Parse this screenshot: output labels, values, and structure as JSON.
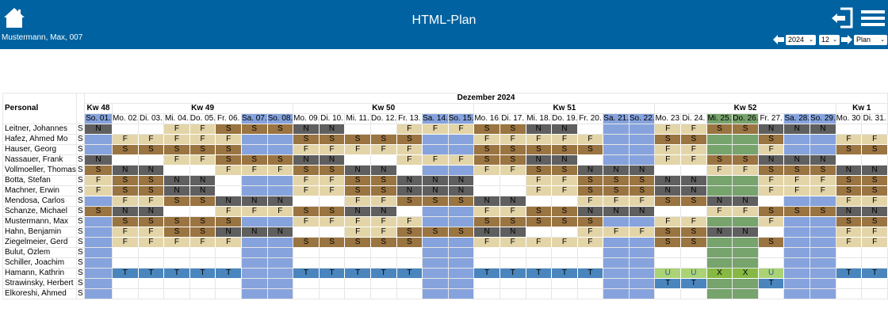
{
  "header": {
    "title": "HTML-Plan",
    "user": "Mustermann, Max, 007",
    "year": "2024",
    "month": "12",
    "view": "Plan",
    "icons": [
      "home-icon",
      "logout-icon",
      "menu-icon",
      "arrow-left-icon",
      "arrow-right-icon"
    ]
  },
  "colors": {
    "header_bg": "#0062a0",
    "weekend": "#86a3dd",
    "holiday": "#77a36c",
    "F": "#e3d5a8",
    "S": "#9a7441",
    "N": "#5f5f5f",
    "T": "#4a86bd",
    "U": "#abd274",
    "X": "#86b843"
  },
  "plan": {
    "personal_label": "Personal",
    "month_label": "Dezember 2024",
    "weeks": [
      {
        "label": "Kw 48",
        "days": 1
      },
      {
        "label": "Kw 49",
        "days": 7
      },
      {
        "label": "Kw 50",
        "days": 7
      },
      {
        "label": "Kw 51",
        "days": 7
      },
      {
        "label": "Kw 52",
        "days": 7
      },
      {
        "label": "Kw 1",
        "days": 2
      }
    ],
    "days": [
      {
        "label": "So. 01.",
        "type": "weekend"
      },
      {
        "label": "Mo. 02.",
        "type": "workday"
      },
      {
        "label": "Di. 03.",
        "type": "workday"
      },
      {
        "label": "Mi. 04.",
        "type": "workday"
      },
      {
        "label": "Do. 05.",
        "type": "workday"
      },
      {
        "label": "Fr. 06.",
        "type": "workday"
      },
      {
        "label": "Sa. 07.",
        "type": "weekend"
      },
      {
        "label": "So. 08.",
        "type": "weekend"
      },
      {
        "label": "Mo. 09.",
        "type": "workday"
      },
      {
        "label": "Di. 10.",
        "type": "workday"
      },
      {
        "label": "Mi. 11.",
        "type": "workday"
      },
      {
        "label": "Do. 12.",
        "type": "workday"
      },
      {
        "label": "Fr. 13.",
        "type": "workday"
      },
      {
        "label": "Sa. 14.",
        "type": "weekend"
      },
      {
        "label": "So. 15.",
        "type": "weekend"
      },
      {
        "label": "Mo. 16.",
        "type": "workday"
      },
      {
        "label": "Di. 17.",
        "type": "workday"
      },
      {
        "label": "Mi. 18.",
        "type": "workday"
      },
      {
        "label": "Do. 19.",
        "type": "workday"
      },
      {
        "label": "Fr. 20.",
        "type": "workday"
      },
      {
        "label": "Sa. 21.",
        "type": "weekend"
      },
      {
        "label": "So. 22.",
        "type": "weekend"
      },
      {
        "label": "Mo. 23.",
        "type": "workday"
      },
      {
        "label": "Di. 24.",
        "type": "workday"
      },
      {
        "label": "Mi. 25.",
        "type": "holiday"
      },
      {
        "label": "Do. 26.",
        "type": "holiday"
      },
      {
        "label": "Fr. 27.",
        "type": "workday"
      },
      {
        "label": "Sa. 28.",
        "type": "weekend"
      },
      {
        "label": "So. 29.",
        "type": "weekend"
      },
      {
        "label": "Mo. 30.",
        "type": "workday"
      },
      {
        "label": "Di. 31.",
        "type": "workday"
      }
    ],
    "rows": [
      {
        "name": "Leitner, Johannes",
        "code": "S",
        "cells": [
          "N",
          "",
          "",
          "F",
          "F",
          "S",
          "S",
          "S",
          "N",
          "N",
          "",
          "",
          "F",
          "F",
          "F",
          "S",
          "S",
          "N",
          "N",
          "",
          "",
          "",
          "F",
          "F",
          "S",
          "S",
          "N",
          "N",
          "N",
          "",
          ""
        ]
      },
      {
        "name": "Hafez, Ahmed Mo",
        "code": "S",
        "cells": [
          "",
          "F",
          "F",
          "F",
          "F",
          "F",
          "",
          "",
          "S",
          "S",
          "S",
          "S",
          "S",
          "",
          "",
          "F",
          "F",
          "F",
          "F",
          "F",
          "",
          "",
          "S",
          "S",
          "",
          "",
          "S",
          "",
          "",
          "F",
          "F"
        ]
      },
      {
        "name": "Hauser, Georg",
        "code": "S",
        "cells": [
          "",
          "S",
          "S",
          "S",
          "S",
          "S",
          "",
          "",
          "F",
          "F",
          "F",
          "F",
          "F",
          "",
          "",
          "S",
          "S",
          "S",
          "S",
          "S",
          "",
          "",
          "F",
          "F",
          "",
          "",
          "F",
          "",
          "",
          "S",
          "S"
        ]
      },
      {
        "name": "Nassauer, Frank",
        "code": "S",
        "cells": [
          "N",
          "",
          "",
          "F",
          "F",
          "S",
          "S",
          "S",
          "N",
          "N",
          "",
          "",
          "F",
          "F",
          "F",
          "S",
          "S",
          "N",
          "N",
          "",
          "",
          "",
          "F",
          "F",
          "S",
          "S",
          "N",
          "N",
          "N",
          "",
          ""
        ]
      },
      {
        "name": "Vollmoeller, Thomas",
        "code": "S",
        "cells": [
          "S",
          "N",
          "N",
          "",
          "",
          "F",
          "F",
          "F",
          "S",
          "S",
          "N",
          "N",
          "",
          "",
          "",
          "F",
          "F",
          "S",
          "S",
          "N",
          "N",
          "N",
          "",
          "",
          "F",
          "F",
          "S",
          "S",
          "S",
          "N",
          "N"
        ]
      },
      {
        "name": "Botta, Stefan",
        "code": "S",
        "cells": [
          "F",
          "S",
          "S",
          "N",
          "N",
          "",
          "",
          "",
          "F",
          "F",
          "S",
          "S",
          "N",
          "N",
          "N",
          "",
          "",
          "F",
          "F",
          "S",
          "S",
          "S",
          "N",
          "N",
          "",
          "",
          "F",
          "F",
          "F",
          "S",
          "S"
        ]
      },
      {
        "name": "Machner, Erwin",
        "code": "S",
        "cells": [
          "F",
          "S",
          "S",
          "N",
          "N",
          "",
          "",
          "",
          "F",
          "F",
          "S",
          "S",
          "N",
          "N",
          "N",
          "",
          "",
          "F",
          "F",
          "S",
          "S",
          "S",
          "N",
          "N",
          "",
          "",
          "F",
          "F",
          "F",
          "S",
          "S"
        ]
      },
      {
        "name": "Mendosa, Carlos",
        "code": "S",
        "cells": [
          "",
          "F",
          "F",
          "S",
          "S",
          "N",
          "N",
          "N",
          "",
          "",
          "F",
          "F",
          "S",
          "S",
          "S",
          "N",
          "N",
          "",
          "",
          "F",
          "F",
          "F",
          "S",
          "S",
          "N",
          "N",
          "",
          "",
          "",
          "F",
          "F"
        ]
      },
      {
        "name": "Schanze, Michael",
        "code": "S",
        "cells": [
          "S",
          "N",
          "N",
          "",
          "",
          "F",
          "F",
          "F",
          "S",
          "S",
          "N",
          "N",
          "",
          "",
          "",
          "F",
          "F",
          "S",
          "S",
          "N",
          "N",
          "N",
          "",
          "",
          "F",
          "F",
          "S",
          "S",
          "S",
          "N",
          "N"
        ]
      },
      {
        "name": "Mustermann, Max",
        "code": "S",
        "cells": [
          "",
          "S",
          "S",
          "S",
          "S",
          "S",
          "",
          "",
          "F",
          "F",
          "F",
          "F",
          "F",
          "",
          "",
          "S",
          "S",
          "S",
          "S",
          "S",
          "",
          "",
          "F",
          "F",
          "",
          "",
          "F",
          "",
          "",
          "S",
          "S"
        ]
      },
      {
        "name": "Hahn, Benjamin",
        "code": "S",
        "cells": [
          "",
          "F",
          "F",
          "S",
          "S",
          "N",
          "N",
          "N",
          "",
          "",
          "F",
          "F",
          "S",
          "S",
          "S",
          "N",
          "N",
          "",
          "",
          "F",
          "F",
          "F",
          "S",
          "S",
          "N",
          "N",
          "",
          "",
          "",
          "F",
          "F"
        ]
      },
      {
        "name": "Ziegelmeier, Gerd",
        "code": "S",
        "cells": [
          "",
          "F",
          "F",
          "F",
          "F",
          "F",
          "",
          "",
          "S",
          "S",
          "S",
          "S",
          "S",
          "",
          "",
          "F",
          "F",
          "F",
          "F",
          "F",
          "",
          "",
          "S",
          "S",
          "",
          "",
          "S",
          "",
          "",
          "F",
          "F"
        ]
      },
      {
        "name": "Bulut, Özlem",
        "code": "S",
        "cells": [
          "",
          "",
          "",
          "",
          "",
          "",
          "",
          "",
          "",
          "",
          "",
          "",
          "",
          "",
          "",
          "",
          "",
          "",
          "",
          "",
          "",
          "",
          "",
          "",
          "",
          "",
          "",
          "",
          "",
          "",
          ""
        ]
      },
      {
        "name": "Schiller, Joachim",
        "code": "S",
        "cells": [
          "",
          "",
          "",
          "",
          "",
          "",
          "",
          "",
          "",
          "",
          "",
          "",
          "",
          "",
          "",
          "",
          "",
          "",
          "",
          "",
          "",
          "",
          "",
          "",
          "",
          "",
          "",
          "",
          "",
          "",
          ""
        ]
      },
      {
        "name": "Hamann, Kathrin",
        "code": "S",
        "cells": [
          "",
          "T",
          "T",
          "T",
          "T",
          "T",
          "",
          "",
          "T",
          "T",
          "T",
          "T",
          "T",
          "",
          "",
          "T",
          "T",
          "T",
          "T",
          "T",
          "",
          "",
          "U",
          "U",
          "X",
          "X",
          "U",
          "",
          "",
          "T",
          "T"
        ]
      },
      {
        "name": "Strawinsky, Herbert",
        "code": "S",
        "cells": [
          "",
          "",
          "",
          "",
          "",
          "",
          "",
          "",
          "",
          "",
          "",
          "",
          "",
          "",
          "",
          "",
          "",
          "",
          "",
          "",
          "",
          "",
          "T",
          "T",
          "",
          "",
          "T",
          "",
          "",
          "",
          ""
        ]
      },
      {
        "name": "Elkoreshi, Ahmed",
        "code": "S",
        "cells": [
          "",
          "",
          "",
          "",
          "",
          "",
          "",
          "",
          "",
          "",
          "",
          "",
          "",
          "",
          "",
          "",
          "",
          "",
          "",
          "",
          "",
          "",
          "",
          "",
          "",
          "",
          "",
          "",
          "",
          "",
          ""
        ]
      }
    ]
  }
}
